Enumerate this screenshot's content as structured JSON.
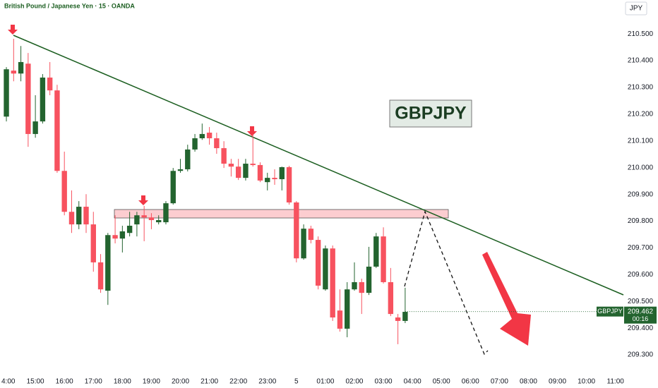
{
  "chart_data": {
    "type": "candlestick",
    "title": "British Pound / Japanese Yen · 15 · OANDA",
    "currency_button": "JPY",
    "annotation": "GBPJPY",
    "up_color": "#23642f",
    "down_color": "#f7525f",
    "grid": false,
    "open": [
      210.191,
      210.363,
      210.352,
      210.389,
      210.126,
      210.173,
      210.337,
      210.289,
      209.988,
      209.835,
      209.788,
      209.854,
      209.788,
      209.646,
      209.54,
      209.748,
      209.735,
      209.756,
      209.788,
      209.822,
      209.814,
      209.796,
      209.796,
      209.867,
      209.988,
      209.994,
      210.068,
      210.11,
      210.131,
      210.11,
      210.073,
      210.015,
      210.004,
      209.962,
      210.015,
      210.01,
      209.946,
      209.962,
      209.957,
      210.002,
      209.87,
      209.661,
      209.772,
      209.73,
      209.545,
      209.698,
      209.466,
      209.398,
      209.545,
      209.572,
      209.532,
      209.63,
      209.743,
      209.572,
      209.44,
      209.427
    ],
    "high": [
      210.376,
      210.482,
      210.455,
      210.429,
      210.271,
      210.35,
      210.395,
      210.31,
      210.06,
      209.915,
      209.875,
      209.901,
      209.835,
      209.677,
      209.756,
      209.822,
      209.783,
      209.835,
      209.835,
      209.857,
      209.83,
      209.822,
      209.875,
      209.999,
      210.033,
      210.086,
      210.126,
      210.165,
      210.152,
      210.131,
      210.099,
      210.033,
      210.033,
      210.033,
      210.126,
      210.02,
      209.981,
      209.994,
      210.004,
      210.007,
      209.875,
      209.788,
      209.783,
      209.743,
      209.709,
      209.709,
      209.545,
      209.572,
      209.646,
      209.585,
      209.704,
      209.756,
      209.777,
      209.625,
      209.453,
      209.551
    ],
    "low": [
      210.173,
      210.323,
      210.323,
      210.078,
      210.112,
      210.165,
      210.271,
      209.981,
      209.822,
      209.756,
      209.77,
      209.756,
      209.611,
      209.532,
      209.487,
      209.717,
      209.683,
      209.743,
      209.743,
      209.725,
      209.77,
      209.788,
      209.788,
      209.862,
      209.981,
      209.986,
      210.06,
      210.104,
      210.086,
      210.052,
      209.999,
      209.967,
      209.954,
      209.952,
      210.004,
      209.946,
      209.915,
      209.936,
      209.915,
      209.862,
      209.646,
      209.656,
      209.717,
      209.545,
      209.54,
      209.427,
      209.387,
      209.366,
      209.54,
      209.453,
      209.524,
      209.625,
      209.567,
      209.445,
      209.34,
      209.419
    ],
    "close": [
      210.368,
      210.352,
      210.395,
      210.126,
      210.173,
      210.337,
      210.289,
      209.988,
      209.835,
      209.788,
      209.854,
      209.788,
      209.646,
      209.545,
      209.748,
      209.735,
      209.762,
      209.783,
      209.822,
      209.814,
      209.804,
      209.804,
      209.867,
      209.988,
      209.994,
      210.068,
      210.11,
      210.126,
      210.11,
      210.073,
      210.015,
      210.004,
      209.962,
      210.015,
      210.01,
      209.952,
      209.962,
      209.957,
      210.002,
      209.87,
      209.661,
      209.772,
      209.73,
      209.559,
      209.698,
      209.44,
      209.398,
      209.545,
      209.572,
      209.532,
      209.63,
      209.743,
      209.572,
      209.453,
      209.427,
      209.461
    ],
    "xlim": [
      -0.88,
      85.1
    ],
    "xticks": [
      {
        "value": 0,
        "label": "4:00"
      },
      {
        "value": 4,
        "label": "15:00"
      },
      {
        "value": 8,
        "label": "16:00"
      },
      {
        "value": 12,
        "label": "17:00"
      },
      {
        "value": 16,
        "label": "18:00"
      },
      {
        "value": 20,
        "label": "19:00"
      },
      {
        "value": 24,
        "label": "20:00"
      },
      {
        "value": 28,
        "label": "21:00"
      },
      {
        "value": 32,
        "label": "22:00"
      },
      {
        "value": 36,
        "label": "23:00"
      },
      {
        "value": 40,
        "label": "5"
      },
      {
        "value": 44,
        "label": "01:00"
      },
      {
        "value": 48,
        "label": "02:00"
      },
      {
        "value": 52,
        "label": "03:00"
      },
      {
        "value": 56,
        "label": "04:00"
      },
      {
        "value": 60,
        "label": "05:00"
      },
      {
        "value": 64,
        "label": "06:00"
      },
      {
        "value": 68,
        "label": "07:00"
      },
      {
        "value": 72,
        "label": "08:00"
      },
      {
        "value": 76,
        "label": "09:00"
      },
      {
        "value": 80,
        "label": "10:00"
      },
      {
        "value": 84,
        "label": "11:00"
      }
    ],
    "ylim": [
      209.229,
      210.627
    ],
    "yticks": [
      {
        "value": 209.3,
        "label": "209.300"
      },
      {
        "value": 209.4,
        "label": "209.400"
      },
      {
        "value": 209.5,
        "label": "209.500"
      },
      {
        "value": 209.6,
        "label": "209.600"
      },
      {
        "value": 209.7,
        "label": "209.700"
      },
      {
        "value": 209.8,
        "label": "209.800"
      },
      {
        "value": 209.9,
        "label": "209.900"
      },
      {
        "value": 210.0,
        "label": "210.000"
      },
      {
        "value": 210.1,
        "label": "210.100"
      },
      {
        "value": 210.2,
        "label": "210.200"
      },
      {
        "value": 210.3,
        "label": "210.300"
      },
      {
        "value": 210.4,
        "label": "210.400"
      },
      {
        "value": 210.5,
        "label": "210.500"
      }
    ],
    "last_price": {
      "name": "GBPJPY",
      "value": 209.462,
      "countdown": "00:16"
    }
  }
}
